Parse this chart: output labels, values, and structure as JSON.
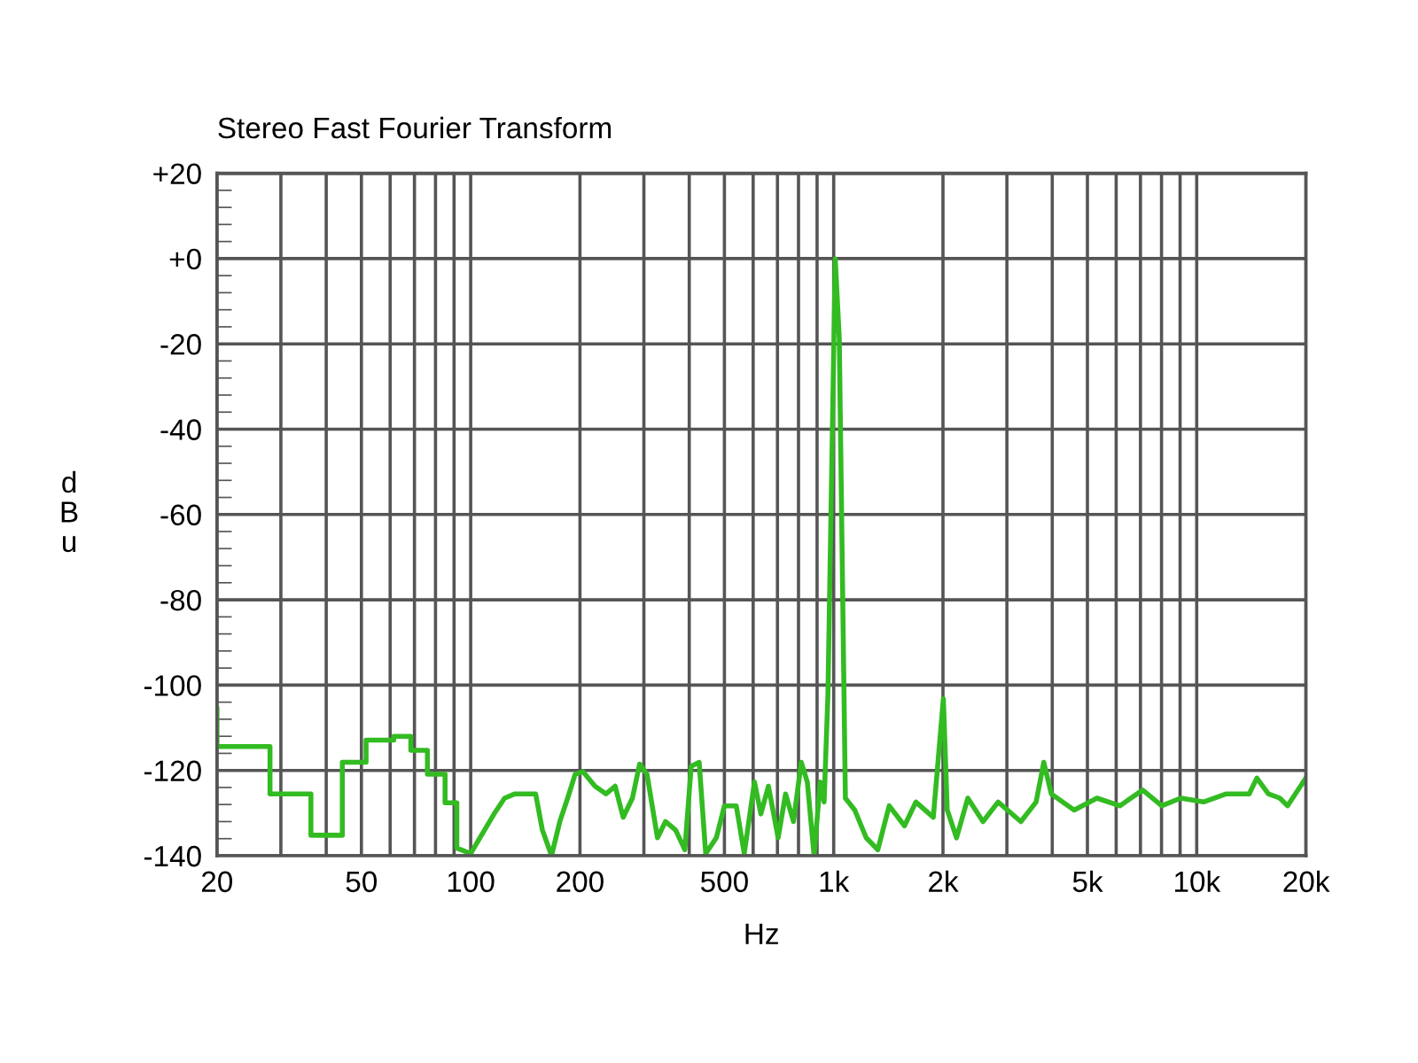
{
  "chart_data": {
    "type": "line",
    "title": "Stereo Fast Fourier Transform",
    "xlabel": "Hz",
    "ylabel": "dBu",
    "log": "x",
    "grid": true,
    "legend": false,
    "marker": "none",
    "line_style": "solid",
    "xlim": [
      20,
      20000
    ],
    "ylim": [
      -140,
      20
    ],
    "xticks": [
      20,
      {
        "value": 30,
        "label": null
      },
      {
        "value": 40,
        "label": null
      },
      50,
      {
        "value": 60,
        "label": null
      },
      {
        "value": 70,
        "label": null
      },
      {
        "value": 80,
        "label": null
      },
      {
        "value": 90,
        "label": null
      },
      100,
      200,
      {
        "value": 300,
        "label": null
      },
      {
        "value": 400,
        "label": null
      },
      500,
      {
        "value": 600,
        "label": null
      },
      {
        "value": 700,
        "label": null
      },
      {
        "value": 800,
        "label": null
      },
      {
        "value": 900,
        "label": null
      },
      {
        "value": 1000,
        "label": "1k"
      },
      {
        "value": 2000,
        "label": "2k"
      },
      {
        "value": 3000,
        "label": null
      },
      {
        "value": 4000,
        "label": null
      },
      {
        "value": 5000,
        "label": "5k"
      },
      {
        "value": 6000,
        "label": null
      },
      {
        "value": 7000,
        "label": null
      },
      {
        "value": 8000,
        "label": null
      },
      {
        "value": 9000,
        "label": null
      },
      {
        "value": 10000,
        "label": "10k"
      },
      {
        "value": 20000,
        "label": "20k"
      }
    ],
    "yticks": [
      {
        "value": 20,
        "label": "+20"
      },
      {
        "value": 0,
        "label": "+0"
      },
      -20,
      -40,
      -60,
      -80,
      -100,
      -120,
      -140
    ],
    "series": [
      {
        "color": "#33bb22",
        "x": [
          20,
          20,
          28,
          28,
          36.3,
          36.3,
          44.3,
          44.3,
          51.5,
          51.5,
          61.4,
          61.4,
          68.4,
          68.4,
          76,
          76,
          85,
          85,
          91.6,
          91.6,
          100,
          106,
          116,
          124,
          132.5,
          151,
          157.5,
          167,
          176,
          185,
          194,
          204,
          220,
          236,
          250,
          263,
          279,
          292,
          306,
          327,
          344,
          367,
          389,
          405,
          426,
          444,
          475,
          500,
          539,
          567,
          605,
          630,
          661,
          703,
          737,
          775,
          814,
          846,
          883,
          918,
          941,
          964,
          1010,
          1036,
          1077,
          1143,
          1229,
          1323,
          1422,
          1567,
          1684,
          1881,
          2005,
          2055,
          2180,
          2341,
          2578,
          2838,
          3278,
          3611,
          3791,
          3976,
          4596,
          5312,
          6141,
          7099,
          8011,
          9040,
          10441,
          12069,
          13951,
          14645,
          15753,
          16948,
          17788,
          19980
        ],
        "values": [
          -105.6,
          -114.4,
          -114.4,
          -125.5,
          -125.5,
          -135.2,
          -135.2,
          -118.1,
          -118.1,
          -112.9,
          -112.9,
          -112,
          -112,
          -115.3,
          -115.3,
          -120.9,
          -120.9,
          -127.6,
          -127.6,
          -138.2,
          -139.5,
          -135.8,
          -130.2,
          -126.5,
          -125.5,
          -125.5,
          -133.9,
          -140,
          -132,
          -126.5,
          -120.9,
          -120.3,
          -123.7,
          -125.5,
          -123.7,
          -131,
          -126.5,
          -118.5,
          -120.9,
          -135.8,
          -132,
          -134,
          -138.6,
          -119,
          -118.1,
          -139.5,
          -135.8,
          -128.3,
          -128.3,
          -139.5,
          -122.7,
          -130.2,
          -123.7,
          -135.8,
          -125.5,
          -132,
          -118.1,
          -122.7,
          -140,
          -122.7,
          -127.4,
          -102.3,
          -0.1,
          -18.7,
          -126.5,
          -129.3,
          -135.8,
          -138.6,
          -128.3,
          -133,
          -127.4,
          -131,
          -103.2,
          -129.3,
          -135.8,
          -126.5,
          -132,
          -127.4,
          -132,
          -127.4,
          -118.1,
          -125.5,
          -129.3,
          -126.5,
          -128.3,
          -124.6,
          -128.3,
          -126.5,
          -127.4,
          -125.5,
          -125.5,
          -121.8,
          -125.5,
          -126.5,
          -128.3,
          -121.8
        ]
      }
    ]
  }
}
